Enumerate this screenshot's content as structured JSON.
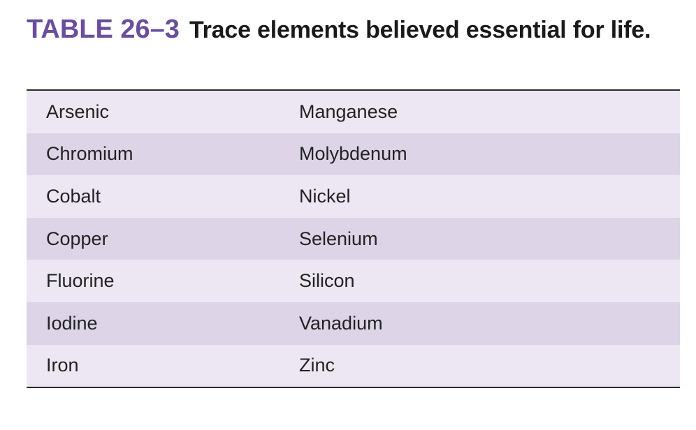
{
  "caption": {
    "label": "TABLE 26–3",
    "title": "Trace elements believed essential for life."
  },
  "table": {
    "rows": [
      [
        "Arsenic",
        "Manganese"
      ],
      [
        "Chromium",
        "Molybdenum"
      ],
      [
        "Cobalt",
        "Nickel"
      ],
      [
        "Copper",
        "Selenium"
      ],
      [
        "Fluorine",
        "Silicon"
      ],
      [
        "Iodine",
        "Vanadium"
      ],
      [
        "Iron",
        "Zinc"
      ]
    ]
  },
  "colors": {
    "label": "#6a4e9e",
    "row_light": "#ede7f4",
    "row_dark": "#ddd4e7",
    "rule": "#2b2b2b"
  }
}
